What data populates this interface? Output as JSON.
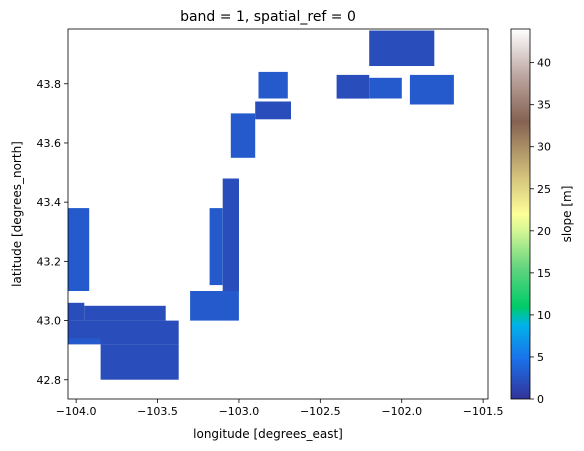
{
  "chart_data": {
    "type": "heatmap",
    "title": "band = 1, spatial_ref = 0",
    "xlabel": "longitude [degrees_east]",
    "ylabel": "latitude [degrees_north]",
    "xlim": [
      -104.05,
      -101.47
    ],
    "ylim": [
      42.735,
      43.985
    ],
    "xticks": [
      -104.0,
      -103.5,
      -103.0,
      -102.5,
      -102.0,
      -101.5
    ],
    "xtick_labels": [
      "−104.0",
      "−103.5",
      "−103.0",
      "−102.5",
      "−102.0",
      "−101.5"
    ],
    "yticks": [
      42.8,
      43.0,
      43.2,
      43.4,
      43.6,
      43.8
    ],
    "ytick_labels": [
      "42.8",
      "43.0",
      "43.2",
      "43.4",
      "43.6",
      "43.8"
    ],
    "colorbar": {
      "label": "slope [m]",
      "colormap": "terrain",
      "range": [
        0,
        44
      ],
      "ticks": [
        0,
        5,
        10,
        15,
        20,
        25,
        30,
        35,
        40
      ],
      "tick_labels": [
        "0",
        "5",
        "10",
        "15",
        "20",
        "25",
        "30",
        "35",
        "40"
      ]
    },
    "grid": false,
    "regions": [
      {
        "lon": [
          -104.05,
          -103.37
        ],
        "lat": [
          42.92,
          43.0
        ],
        "slope": 2
      },
      {
        "lon": [
          -103.85,
          -103.37
        ],
        "lat": [
          42.8,
          42.92
        ],
        "slope": 2
      },
      {
        "lon": [
          -104.05,
          -103.85
        ],
        "lat": [
          42.92,
          42.94
        ],
        "slope": 3
      },
      {
        "lon": [
          -104.05,
          -103.95
        ],
        "lat": [
          43.0,
          43.06
        ],
        "slope": 2
      },
      {
        "lon": [
          -103.95,
          -103.45
        ],
        "lat": [
          43.0,
          43.05
        ],
        "slope": 2
      },
      {
        "lon": [
          -103.3,
          -103.0
        ],
        "lat": [
          43.0,
          43.1
        ],
        "slope": 3
      },
      {
        "lon": [
          -104.05,
          -103.92
        ],
        "lat": [
          43.1,
          43.38
        ],
        "slope": 3
      },
      {
        "lon": [
          -103.18,
          -103.1
        ],
        "lat": [
          43.12,
          43.38
        ],
        "slope": 3
      },
      {
        "lon": [
          -103.1,
          -103.0
        ],
        "lat": [
          43.1,
          43.48
        ],
        "slope": 2
      },
      {
        "lon": [
          -103.05,
          -102.9
        ],
        "lat": [
          43.55,
          43.7
        ],
        "slope": 3
      },
      {
        "lon": [
          -102.9,
          -102.68
        ],
        "lat": [
          43.68,
          43.74
        ],
        "slope": 2
      },
      {
        "lon": [
          -102.88,
          -102.7
        ],
        "lat": [
          43.75,
          43.84
        ],
        "slope": 3
      },
      {
        "lon": [
          -102.4,
          -102.2
        ],
        "lat": [
          43.75,
          43.83
        ],
        "slope": 2
      },
      {
        "lon": [
          -102.2,
          -102.0
        ],
        "lat": [
          43.75,
          43.82
        ],
        "slope": 3
      },
      {
        "lon": [
          -102.2,
          -101.8
        ],
        "lat": [
          43.86,
          43.98
        ],
        "slope": 2
      },
      {
        "lon": [
          -101.95,
          -101.68
        ],
        "lat": [
          43.73,
          43.83
        ],
        "slope": 3
      }
    ]
  }
}
